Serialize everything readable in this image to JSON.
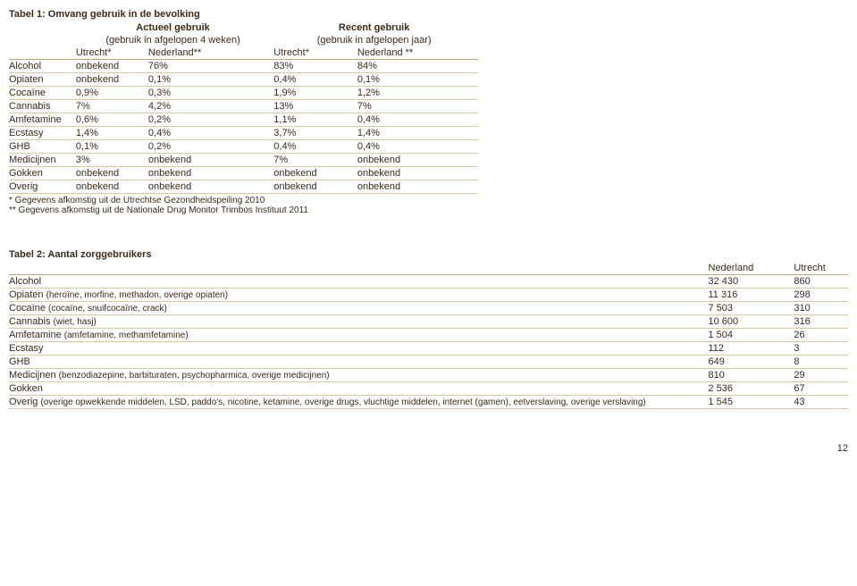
{
  "page_number": "12",
  "table1": {
    "title": "Tabel 1: Omvang gebruik in de bevolking",
    "group_headers": {
      "actual": "Actueel gebruik",
      "recent": "Recent gebruik"
    },
    "sub_headers": {
      "actual": "(gebruik in afgelopen 4 weken)",
      "recent": "(gebruik in afgelopen jaar)"
    },
    "col_headers": {
      "c0": "",
      "c1": "Utrecht*",
      "c2": "Nederland**",
      "c3": "Utrecht*",
      "c4": "Nederland **"
    },
    "rows": [
      {
        "label": "Alcohol",
        "c1": "onbekend",
        "c2": "76%",
        "c3": "83%",
        "c4": "84%"
      },
      {
        "label": "Opiaten",
        "c1": "onbekend",
        "c2": "0,1%",
        "c3": "0,4%",
        "c4": "0,1%"
      },
      {
        "label": "Cocaïne",
        "c1": "0,9%",
        "c2": "0,3%",
        "c3": "1,9%",
        "c4": "1,2%"
      },
      {
        "label": "Cannabis",
        "c1": "7%",
        "c2": "4,2%",
        "c3": "13%",
        "c4": "7%"
      },
      {
        "label": "Amfetamine",
        "c1": "0,6%",
        "c2": "0,2%",
        "c3": "1,1%",
        "c4": "0,4%"
      },
      {
        "label": "Ecstasy",
        "c1": "1,4%",
        "c2": "0,4%",
        "c3": "3,7%",
        "c4": "1,4%"
      },
      {
        "label": "GHB",
        "c1": "0,1%",
        "c2": "0,2%",
        "c3": "0,4%",
        "c4": "0,4%"
      },
      {
        "label": "Medicijnen",
        "c1": "3%",
        "c2": "onbekend",
        "c3": "7%",
        "c4": "onbekend"
      },
      {
        "label": "Gokken",
        "c1": "onbekend",
        "c2": "onbekend",
        "c3": "onbekend",
        "c4": "onbekend"
      },
      {
        "label": "Overig",
        "c1": "onbekend",
        "c2": "onbekend",
        "c3": "onbekend",
        "c4": "onbekend"
      }
    ],
    "footnotes": {
      "f1": "* Gegevens afkomstig uit de Utrechtse Gezondheidspeiling 2010",
      "f2": "** Gegevens afkomstig uit de Nationale Drug Monitor Trimbos Instituut 2011"
    }
  },
  "table2": {
    "title": "Tabel 2: Aantal zorggebruikers",
    "col_headers": {
      "cA": "",
      "cB": "Nederland",
      "cC": "Utrecht"
    },
    "rows": [
      {
        "label": "Alcohol",
        "note": "",
        "cB": "32 430",
        "cC": "860"
      },
      {
        "label": "Opiaten ",
        "note": "(heroïne, morfine, methadon, overige opiaten)",
        "cB": "11 316",
        "cC": "298"
      },
      {
        "label": "Cocaïne ",
        "note": "(cocaïne, snuifcocaïne, crack)",
        "cB": "7 503",
        "cC": "310"
      },
      {
        "label": "Cannabis ",
        "note": "(wiet, hasj)",
        "cB": "10 600",
        "cC": "316"
      },
      {
        "label": "Amfetamine ",
        "note": "(amfetamine, methamfetamine)",
        "cB": "1 504",
        "cC": "26"
      },
      {
        "label": "Ecstasy",
        "note": "",
        "cB": "112",
        "cC": "3"
      },
      {
        "label": "GHB",
        "note": "",
        "cB": "649",
        "cC": "8"
      },
      {
        "label": "Medicijnen ",
        "note": "(benzodiazepine, barbituraten, psychopharmica, overige medicijnen)",
        "cB": "810",
        "cC": "29"
      },
      {
        "label": "Gokken",
        "note": "",
        "cB": "2 536",
        "cC": "67"
      },
      {
        "label": "Overig ",
        "note": "(overige opwekkende middelen, LSD, paddo's, nicotine, ketamine, overige drugs, vluchtige middelen, internet (gamen), eetverslaving, overige verslaving)",
        "cB": "1 545",
        "cC": "43"
      }
    ]
  },
  "colors": {
    "text": "#3b2a1a",
    "header_border": "#bba87d",
    "row_border": "#d8c9a3"
  }
}
